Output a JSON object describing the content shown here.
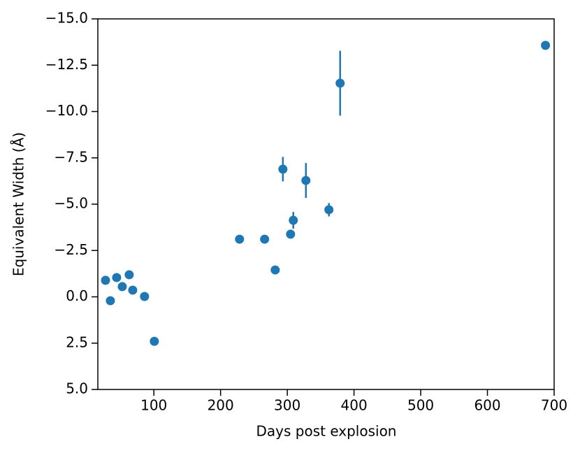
{
  "chart_data": {
    "type": "scatter",
    "x_label": "Days post explosion",
    "y_label": "Equivalent Width (Å)",
    "xlim": [
      16,
      700
    ],
    "ylim": [
      5,
      -15
    ],
    "xticks": [
      100,
      200,
      300,
      400,
      500,
      600,
      700
    ],
    "yticks": [
      {
        "value": -15,
        "label": "−15.0"
      },
      {
        "value": -12.5,
        "label": "−12.5"
      },
      {
        "value": -10,
        "label": "−10.0"
      },
      {
        "value": -7.5,
        "label": "−7.5"
      },
      {
        "value": -5,
        "label": "−5.0"
      },
      {
        "value": -2.5,
        "label": "−2.5"
      },
      {
        "value": 0,
        "label": "0.0"
      },
      2.5,
      {
        "value": 5,
        "label": "5.0"
      }
    ],
    "series": [
      {
        "color": "#1f77b4",
        "x": [
          27.5,
          34.8,
          44.2,
          52.6,
          63,
          68.3,
          86,
          100.7,
          228.4,
          266,
          281.9,
          293.4,
          304.9,
          309,
          327.9,
          362.4,
          379.2,
          687
        ],
        "values": [
          -0.89,
          0.21,
          -1.04,
          -0.55,
          -1.19,
          -0.36,
          -0.02,
          2.4,
          -3.11,
          -3.11,
          -1.45,
          -6.89,
          -3.38,
          -4.13,
          -6.28,
          -4.7,
          -11.53,
          -13.57
        ],
        "errors": [
          null,
          null,
          null,
          null,
          null,
          null,
          null,
          null,
          null,
          null,
          null,
          0.66,
          null,
          0.45,
          0.94,
          0.36,
          1.75,
          null
        ]
      }
    ]
  }
}
